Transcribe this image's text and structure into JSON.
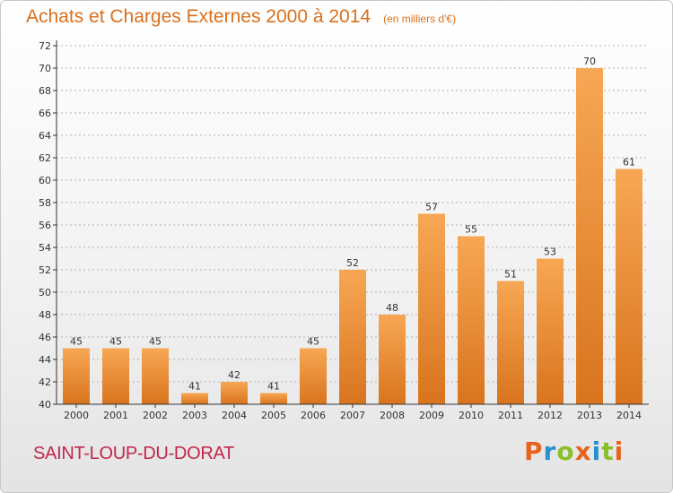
{
  "header": {
    "title": "Achats et Charges Externes 2000 à 2014",
    "unit": "(en milliers d'€)"
  },
  "footer": {
    "place": "SAINT-LOUP-DU-DORAT",
    "brand": "Proxiti",
    "brand_colors": [
      "#e8641e",
      "#2a8fd0",
      "#8bbf2a",
      "#e8641e",
      "#2a8fd0",
      "#8bbf2a",
      "#e8641e"
    ]
  },
  "colors": {
    "bar_top": "#f7a754",
    "bar_bottom": "#d9741e",
    "grid": "#b0b0b0",
    "axis": "#333333"
  },
  "chart_data": {
    "type": "bar",
    "title": "Achats et Charges Externes 2000 à 2014",
    "subtitle": "(en milliers d'€)",
    "categories": [
      "2000",
      "2001",
      "2002",
      "2003",
      "2004",
      "2005",
      "2006",
      "2007",
      "2008",
      "2009",
      "2010",
      "2011",
      "2012",
      "2013",
      "2014"
    ],
    "values": [
      45,
      45,
      45,
      41,
      42,
      41,
      45,
      52,
      48,
      57,
      55,
      51,
      53,
      70,
      61
    ],
    "ylim": [
      40,
      72
    ],
    "yticks": [
      40,
      42,
      44,
      46,
      48,
      50,
      52,
      54,
      56,
      58,
      60,
      62,
      64,
      66,
      68,
      70,
      72
    ],
    "grid": "horizontal-dashed",
    "legend": "none",
    "data_labels": true
  }
}
